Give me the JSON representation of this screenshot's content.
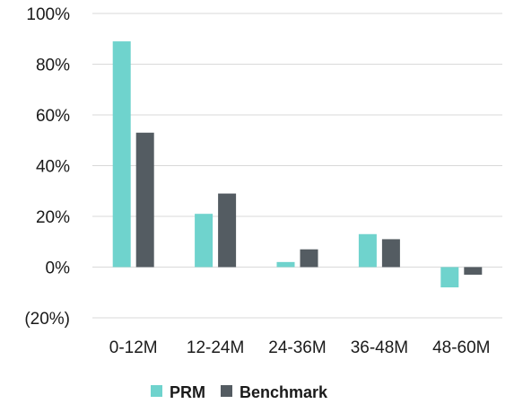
{
  "chart_data": {
    "type": "bar",
    "categories": [
      "0-12M",
      "12-24M",
      "24-36M",
      "36-48M",
      "48-60M"
    ],
    "series": [
      {
        "name": "PRM",
        "color": "#6fd3cd",
        "values": [
          89,
          21,
          2,
          13,
          -8
        ]
      },
      {
        "name": "Benchmark",
        "color": "#545c62",
        "values": [
          53,
          29,
          7,
          11,
          -3
        ]
      }
    ],
    "ylim": [
      -20,
      100
    ],
    "yticks": [
      {
        "value": 100,
        "label": "100%",
        "color": "#1a1a1a"
      },
      {
        "value": 80,
        "label": "80%",
        "color": "#1a1a1a"
      },
      {
        "value": 60,
        "label": "60%",
        "color": "#1a1a1a"
      },
      {
        "value": 40,
        "label": "40%",
        "color": "#1a1a1a"
      },
      {
        "value": 20,
        "label": "20%",
        "color": "#1a1a1a"
      },
      {
        "value": 0,
        "label": "0%",
        "color": "#1a1a1a"
      },
      {
        "value": -20,
        "label": "(20%)",
        "color": "#e02020"
      }
    ],
    "grid": true,
    "legend_position": "bottom"
  }
}
